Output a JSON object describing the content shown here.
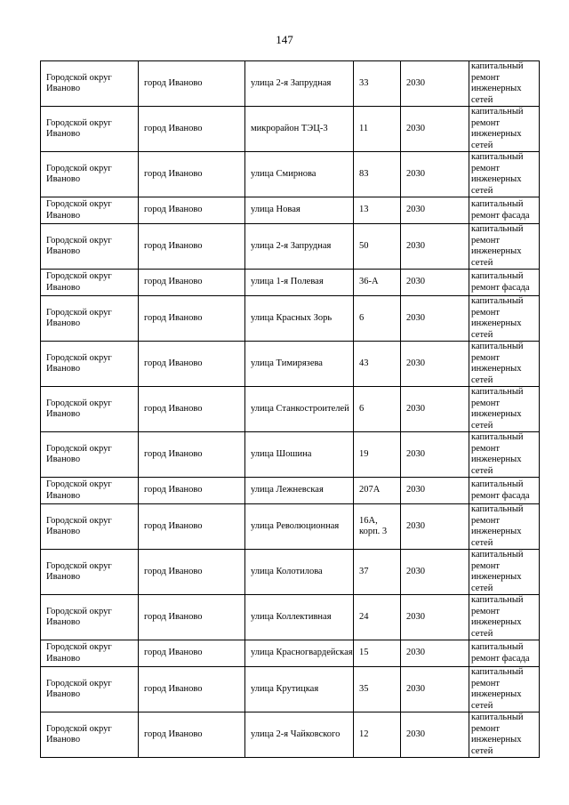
{
  "page_number": "147",
  "rows": [
    [
      "Городской округ Иваново",
      "город Иваново",
      "улица 2-я Запрудная",
      "33",
      "2030",
      "капитальный ремонт инженерных сетей"
    ],
    [
      "Городской округ Иваново",
      "город Иваново",
      "микрорайон ТЭЦ-3",
      "11",
      "2030",
      "капитальный ремонт инженерных сетей"
    ],
    [
      "Городской округ Иваново",
      "город Иваново",
      "улица Смирнова",
      "83",
      "2030",
      "капитальный ремонт инженерных сетей"
    ],
    [
      "Городской округ Иваново",
      "город Иваново",
      "улица Новая",
      "13",
      "2030",
      "капитальный ремонт фасада"
    ],
    [
      "Городской округ Иваново",
      "город Иваново",
      "улица 2-я Запрудная",
      "50",
      "2030",
      "капитальный ремонт инженерных сетей"
    ],
    [
      "Городской округ Иваново",
      "город Иваново",
      "улица 1-я Полевая",
      "36-А",
      "2030",
      "капитальный ремонт фасада"
    ],
    [
      "Городской округ Иваново",
      "город Иваново",
      "улица Красных Зорь",
      "6",
      "2030",
      "капитальный ремонт инженерных сетей"
    ],
    [
      "Городской округ Иваново",
      "город Иваново",
      "улица Тимирязева",
      "43",
      "2030",
      "капитальный ремонт инженерных сетей"
    ],
    [
      "Городской округ Иваново",
      "город Иваново",
      "улица Станкостроителей",
      "6",
      "2030",
      "капитальный ремонт инженерных сетей"
    ],
    [
      "Городской округ Иваново",
      "город Иваново",
      "улица Шошина",
      "19",
      "2030",
      "капитальный ремонт инженерных сетей"
    ],
    [
      "Городской округ Иваново",
      "город Иваново",
      "улица Лежневская",
      "207А",
      "2030",
      "капитальный ремонт фасада"
    ],
    [
      "Городской округ Иваново",
      "город Иваново",
      "улица Революционная",
      "16А, корп. 3",
      "2030",
      "капитальный ремонт инженерных сетей"
    ],
    [
      "Городской округ Иваново",
      "город Иваново",
      "улица Колотилова",
      "37",
      "2030",
      "капитальный ремонт инженерных сетей"
    ],
    [
      "Городской округ Иваново",
      "город Иваново",
      "улица Коллективная",
      "24",
      "2030",
      "капитальный ремонт инженерных сетей"
    ],
    [
      "Городской округ Иваново",
      "город Иваново",
      "улица Красногвардейская",
      "15",
      "2030",
      "капитальный ремонт фасада"
    ],
    [
      "Городской округ Иваново",
      "город Иваново",
      "улица Крутицкая",
      "35",
      "2030",
      "капитальный ремонт инженерных сетей"
    ],
    [
      "Городской округ Иваново",
      "город Иваново",
      "улица 2-я Чайковского",
      "12",
      "2030",
      "капитальный ремонт инженерных сетей"
    ]
  ]
}
